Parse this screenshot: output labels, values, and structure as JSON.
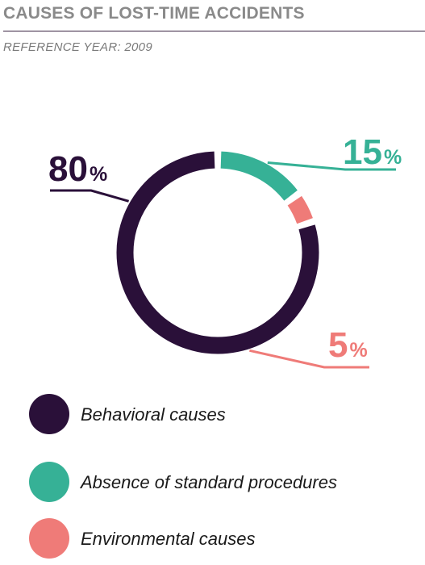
{
  "header": {
    "title": "CAUSES OF LOST-TIME ACCIDENTS",
    "subtitle": "REFERENCE YEAR: 2009"
  },
  "colors": {
    "behavioral": "#2a1039",
    "procedures": "#36b196",
    "environmental": "#ef7b78",
    "title_gray": "#8a8a8a"
  },
  "chart_data": {
    "type": "pie",
    "style": "donut",
    "title": "CAUSES OF LOST-TIME ACCIDENTS",
    "subtitle": "REFERENCE YEAR: 2009",
    "unit": "%",
    "categories": [
      "Behavioral causes",
      "Absence of standard procedures",
      "Environmental causes"
    ],
    "values": [
      80,
      15,
      5
    ],
    "value_labels": [
      "80",
      "15",
      "5"
    ],
    "colors": [
      "#2a1039",
      "#36b196",
      "#ef7b78"
    ],
    "legend_placement": "bottom"
  },
  "legend": {
    "items": [
      {
        "label": "Behavioral causes",
        "color": "#2a1039"
      },
      {
        "label": "Absence of standard procedures",
        "color": "#36b196"
      },
      {
        "label": "Environmental causes",
        "color": "#ef7b78"
      }
    ]
  }
}
